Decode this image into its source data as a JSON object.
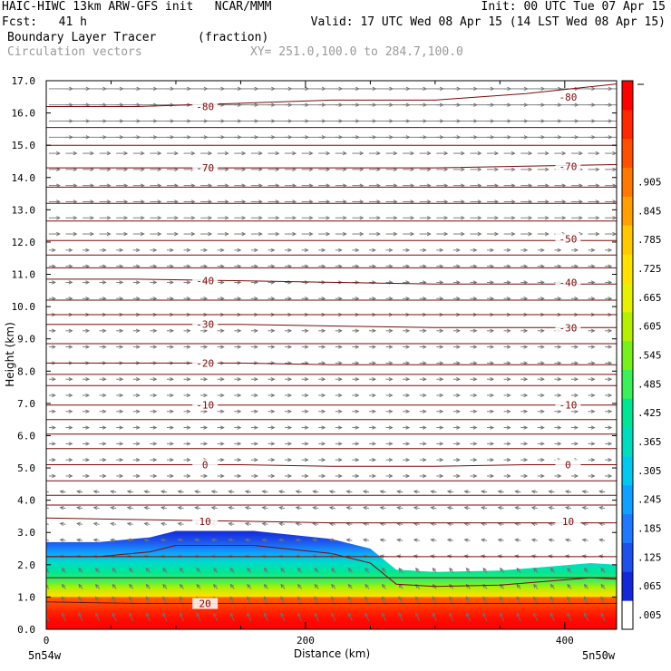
{
  "header": {
    "line1_left": "HAIC-HIWC 13km ARW-GFS init   NCAR/MMM",
    "line1_right": "Init: 00 UTC Tue 07 Apr 15",
    "line2_left": "Fcst:   41 h",
    "line2_right": "Valid: 17 UTC Wed 08 Apr 15 (14 LST Wed 08 Apr 15)",
    "line3_left": "Boundary Layer Tracer",
    "line3_mid": "(fraction)",
    "line4_left": "Circulation vectors",
    "line4_mid": "XY= 251.0,100.0 to 284.7,100.0"
  },
  "chart_data": {
    "type": "heatmap",
    "title": "Boundary Layer Tracer",
    "units": "(fraction)",
    "xlabel": "Distance (km)",
    "ylabel": "Height (km)",
    "xlim": [
      0,
      440
    ],
    "ylim": [
      0,
      17
    ],
    "x_ticks": [
      0,
      200,
      400
    ],
    "x_end_labels": {
      "left": "5n54w",
      "right": "5n50w"
    },
    "y_ticks": [
      0.0,
      1.0,
      2.0,
      3.0,
      4.0,
      5.0,
      6.0,
      7.0,
      8.0,
      9.0,
      10.0,
      11.0,
      12.0,
      13.0,
      14.0,
      15.0,
      16.0,
      17.0
    ],
    "colorbar": {
      "labels": [
        ".005",
        ".065",
        ".125",
        ".185",
        ".245",
        ".305",
        ".365",
        ".425",
        ".485",
        ".545",
        ".605",
        ".665",
        ".725",
        ".785",
        ".845",
        ".905"
      ],
      "colors": [
        "#ffffff",
        "#1428d8",
        "#1e50ec",
        "#2078ff",
        "#10a0ff",
        "#00c8f0",
        "#00dcc0",
        "#00e696",
        "#3cf05a",
        "#78f01e",
        "#b4f000",
        "#e6f000",
        "#ffe000",
        "#ffc800",
        "#ffa000",
        "#ff7800",
        "#ff5000",
        "#ff2800",
        "#ff0000"
      ]
    },
    "tracer_top_km": [
      [
        0,
        2.7
      ],
      [
        40,
        2.7
      ],
      [
        80,
        2.85
      ],
      [
        100,
        3.05
      ],
      [
        160,
        3.05
      ],
      [
        220,
        2.8
      ],
      [
        250,
        2.5
      ],
      [
        270,
        1.85
      ],
      [
        300,
        1.78
      ],
      [
        350,
        1.82
      ],
      [
        390,
        1.95
      ],
      [
        420,
        2.05
      ],
      [
        440,
        2.0
      ]
    ],
    "temperature_contours": [
      {
        "label": "-80",
        "label_positions": [
          [
            40,
            16.2
          ],
          [
            320,
            16.5
          ]
        ],
        "y": [
          16.2,
          16.2,
          16.3,
          16.4,
          16.4,
          16.6,
          16.9
        ]
      },
      {
        "label": "-70",
        "label_positions": [
          [
            40,
            14.3
          ],
          [
            320,
            14.35
          ]
        ],
        "y": [
          14.3,
          14.3,
          14.3,
          14.3,
          14.3,
          14.35,
          14.4
        ]
      },
      {
        "label": "-50",
        "label_positions": [
          [
            320,
            12.1
          ]
        ],
        "y": [
          12.05,
          12.05,
          12.05,
          12.05,
          12.05,
          12.05,
          12.05
        ]
      },
      {
        "label": "-40",
        "label_positions": [
          [
            40,
            10.8
          ],
          [
            320,
            10.75
          ]
        ],
        "y": [
          10.85,
          10.85,
          10.8,
          10.75,
          10.7,
          10.7,
          10.7
        ]
      },
      {
        "label": "-30",
        "label_positions": [
          [
            40,
            9.45
          ],
          [
            320,
            9.35
          ]
        ],
        "y": [
          9.45,
          9.45,
          9.45,
          9.4,
          9.35,
          9.35,
          9.35
        ]
      },
      {
        "label": "-20",
        "label_positions": [
          [
            40,
            8.25
          ]
        ],
        "y": [
          8.25,
          8.25,
          8.25,
          8.2,
          8.2,
          8.2,
          8.2
        ]
      },
      {
        "label": "-10",
        "label_positions": [
          [
            40,
            6.95
          ],
          [
            320,
            6.95
          ]
        ],
        "y": [
          6.95,
          6.95,
          6.95,
          6.95,
          6.95,
          6.95,
          6.95
        ]
      },
      {
        "label": "0",
        "label_positions": [
          [
            40,
            5.1
          ],
          [
            320,
            5.1
          ]
        ],
        "y": [
          5.1,
          5.1,
          5.1,
          5.05,
          5.05,
          5.1,
          5.1
        ]
      },
      {
        "label": "10",
        "label_positions": [
          [
            40,
            3.35
          ],
          [
            320,
            3.35
          ]
        ],
        "y": [
          3.45,
          3.4,
          3.35,
          3.3,
          3.3,
          3.3,
          3.3
        ]
      },
      {
        "label": "20",
        "label_positions": [
          [
            40,
            0.8
          ]
        ],
        "y": [
          0.85,
          0.8,
          0.8,
          0.8,
          0.8,
          0.8,
          0.8
        ]
      }
    ],
    "unlabeled_contours_y": [
      17.2,
      15.55,
      15.0,
      13.7,
      13.2,
      12.65,
      11.6,
      11.2,
      10.2,
      9.75,
      8.85,
      7.9,
      7.55,
      6.5,
      6.05,
      5.6,
      4.6,
      4.15,
      3.85,
      2.25,
      1.6
    ]
  }
}
